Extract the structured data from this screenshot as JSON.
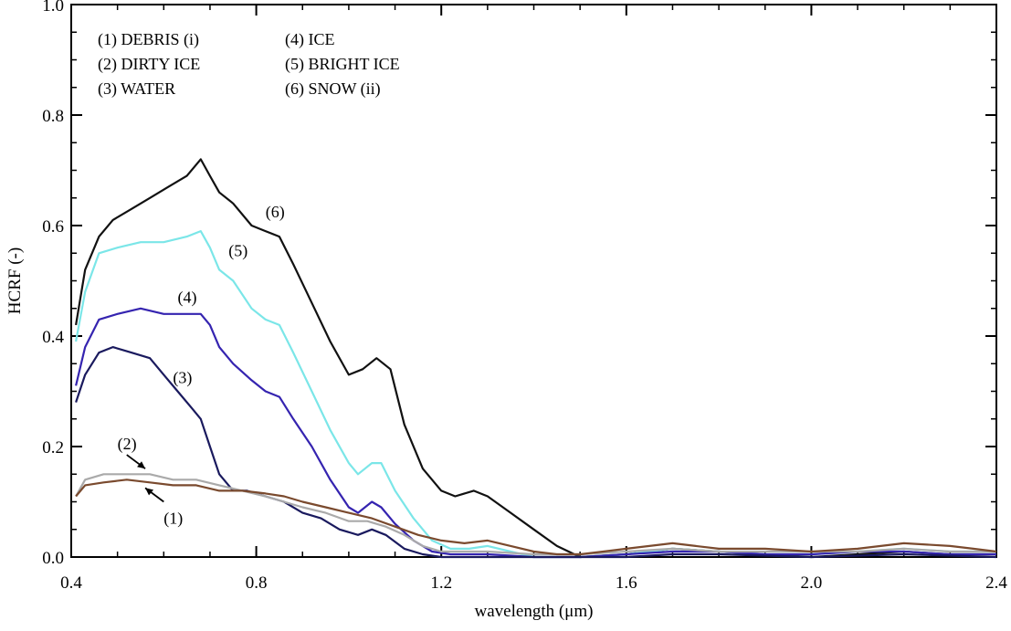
{
  "chart_data": {
    "type": "line",
    "xlabel": "wavelength (μm)",
    "ylabel": "HCRF (-)",
    "xlim": [
      0.4,
      2.4
    ],
    "ylim": [
      0.0,
      1.0
    ],
    "x_ticks": [
      "0.4",
      "0.8",
      "1.2",
      "1.6",
      "2.0",
      "2.4"
    ],
    "y_ticks": [
      "0.0",
      "0.2",
      "0.4",
      "0.6",
      "0.8",
      "1.0"
    ],
    "grid": false,
    "legend_entries": [
      "(1) DEBRIS (i)",
      "(2) DIRTY ICE",
      "(3) WATER",
      "(4) ICE",
      "(5) BRIGHT ICE",
      "(6) SNOW (ii)"
    ],
    "legend_placement": "top-left",
    "series": [
      {
        "label": "(6)",
        "color": "#111111",
        "points": [
          [
            0.41,
            0.42
          ],
          [
            0.43,
            0.52
          ],
          [
            0.46,
            0.58
          ],
          [
            0.49,
            0.61
          ],
          [
            0.53,
            0.63
          ],
          [
            0.57,
            0.65
          ],
          [
            0.61,
            0.67
          ],
          [
            0.65,
            0.69
          ],
          [
            0.68,
            0.72
          ],
          [
            0.7,
            0.69
          ],
          [
            0.72,
            0.66
          ],
          [
            0.75,
            0.64
          ],
          [
            0.79,
            0.6
          ],
          [
            0.82,
            0.59
          ],
          [
            0.85,
            0.58
          ],
          [
            0.88,
            0.53
          ],
          [
            0.92,
            0.46
          ],
          [
            0.96,
            0.39
          ],
          [
            1.0,
            0.33
          ],
          [
            1.03,
            0.34
          ],
          [
            1.06,
            0.36
          ],
          [
            1.09,
            0.34
          ],
          [
            1.12,
            0.24
          ],
          [
            1.16,
            0.16
          ],
          [
            1.2,
            0.12
          ],
          [
            1.23,
            0.11
          ],
          [
            1.27,
            0.12
          ],
          [
            1.3,
            0.11
          ],
          [
            1.35,
            0.08
          ],
          [
            1.4,
            0.05
          ],
          [
            1.45,
            0.02
          ],
          [
            1.5,
            0.0
          ],
          [
            1.6,
            0.005
          ],
          [
            1.7,
            0.015
          ],
          [
            1.8,
            0.01
          ],
          [
            1.9,
            0.005
          ],
          [
            2.0,
            0.0
          ],
          [
            2.1,
            0.005
          ],
          [
            2.2,
            0.01
          ],
          [
            2.3,
            0.005
          ],
          [
            2.4,
            0.005
          ]
        ]
      },
      {
        "label": "(5)",
        "color": "#7be6e8",
        "points": [
          [
            0.41,
            0.39
          ],
          [
            0.43,
            0.48
          ],
          [
            0.46,
            0.55
          ],
          [
            0.5,
            0.56
          ],
          [
            0.55,
            0.57
          ],
          [
            0.6,
            0.57
          ],
          [
            0.65,
            0.58
          ],
          [
            0.68,
            0.59
          ],
          [
            0.7,
            0.56
          ],
          [
            0.72,
            0.52
          ],
          [
            0.75,
            0.5
          ],
          [
            0.79,
            0.45
          ],
          [
            0.82,
            0.43
          ],
          [
            0.85,
            0.42
          ],
          [
            0.88,
            0.37
          ],
          [
            0.92,
            0.3
          ],
          [
            0.96,
            0.23
          ],
          [
            1.0,
            0.17
          ],
          [
            1.02,
            0.15
          ],
          [
            1.05,
            0.17
          ],
          [
            1.07,
            0.17
          ],
          [
            1.1,
            0.12
          ],
          [
            1.14,
            0.07
          ],
          [
            1.18,
            0.03
          ],
          [
            1.22,
            0.015
          ],
          [
            1.26,
            0.015
          ],
          [
            1.3,
            0.02
          ],
          [
            1.35,
            0.01
          ],
          [
            1.4,
            0.0
          ],
          [
            1.5,
            0.0
          ],
          [
            1.6,
            0.005
          ],
          [
            1.7,
            0.015
          ],
          [
            1.8,
            0.01
          ],
          [
            1.9,
            0.005
          ],
          [
            2.0,
            0.005
          ],
          [
            2.1,
            0.01
          ],
          [
            2.2,
            0.015
          ],
          [
            2.3,
            0.01
          ],
          [
            2.4,
            0.01
          ]
        ]
      },
      {
        "label": "(4)",
        "color": "#3524b0",
        "points": [
          [
            0.41,
            0.31
          ],
          [
            0.43,
            0.38
          ],
          [
            0.46,
            0.43
          ],
          [
            0.5,
            0.44
          ],
          [
            0.55,
            0.45
          ],
          [
            0.6,
            0.44
          ],
          [
            0.65,
            0.44
          ],
          [
            0.68,
            0.44
          ],
          [
            0.7,
            0.42
          ],
          [
            0.72,
            0.38
          ],
          [
            0.75,
            0.35
          ],
          [
            0.79,
            0.32
          ],
          [
            0.82,
            0.3
          ],
          [
            0.85,
            0.29
          ],
          [
            0.88,
            0.25
          ],
          [
            0.92,
            0.2
          ],
          [
            0.96,
            0.14
          ],
          [
            1.0,
            0.09
          ],
          [
            1.02,
            0.08
          ],
          [
            1.05,
            0.1
          ],
          [
            1.07,
            0.09
          ],
          [
            1.1,
            0.06
          ],
          [
            1.14,
            0.03
          ],
          [
            1.18,
            0.01
          ],
          [
            1.22,
            0.005
          ],
          [
            1.3,
            0.005
          ],
          [
            1.4,
            0.0
          ],
          [
            1.5,
            0.0
          ],
          [
            1.6,
            0.005
          ],
          [
            1.7,
            0.01
          ],
          [
            1.8,
            0.01
          ],
          [
            1.9,
            0.005
          ],
          [
            2.0,
            0.005
          ],
          [
            2.1,
            0.01
          ],
          [
            2.2,
            0.01
          ],
          [
            2.3,
            0.005
          ],
          [
            2.4,
            0.005
          ]
        ]
      },
      {
        "label": "(3)",
        "color": "#1a1a5e",
        "points": [
          [
            0.41,
            0.28
          ],
          [
            0.43,
            0.33
          ],
          [
            0.46,
            0.37
          ],
          [
            0.49,
            0.38
          ],
          [
            0.53,
            0.37
          ],
          [
            0.57,
            0.36
          ],
          [
            0.6,
            0.33
          ],
          [
            0.63,
            0.3
          ],
          [
            0.66,
            0.27
          ],
          [
            0.68,
            0.25
          ],
          [
            0.7,
            0.2
          ],
          [
            0.72,
            0.15
          ],
          [
            0.75,
            0.12
          ],
          [
            0.78,
            0.12
          ],
          [
            0.82,
            0.11
          ],
          [
            0.86,
            0.1
          ],
          [
            0.9,
            0.08
          ],
          [
            0.94,
            0.07
          ],
          [
            0.98,
            0.05
          ],
          [
            1.02,
            0.04
          ],
          [
            1.05,
            0.05
          ],
          [
            1.08,
            0.04
          ],
          [
            1.12,
            0.015
          ],
          [
            1.16,
            0.005
          ],
          [
            1.2,
            0.0
          ],
          [
            1.3,
            0.0
          ],
          [
            1.4,
            0.0
          ],
          [
            1.5,
            0.0
          ],
          [
            1.6,
            0.0
          ],
          [
            1.7,
            0.005
          ],
          [
            1.8,
            0.005
          ],
          [
            2.0,
            0.0
          ],
          [
            2.2,
            0.005
          ],
          [
            2.4,
            0.0
          ]
        ]
      },
      {
        "label": "(2)",
        "color": "#aaaaaa",
        "points": [
          [
            0.41,
            0.11
          ],
          [
            0.43,
            0.14
          ],
          [
            0.47,
            0.15
          ],
          [
            0.52,
            0.15
          ],
          [
            0.57,
            0.15
          ],
          [
            0.62,
            0.14
          ],
          [
            0.67,
            0.14
          ],
          [
            0.72,
            0.13
          ],
          [
            0.77,
            0.12
          ],
          [
            0.82,
            0.11
          ],
          [
            0.86,
            0.1
          ],
          [
            0.9,
            0.09
          ],
          [
            0.95,
            0.08
          ],
          [
            1.0,
            0.065
          ],
          [
            1.04,
            0.065
          ],
          [
            1.08,
            0.055
          ],
          [
            1.12,
            0.04
          ],
          [
            1.16,
            0.02
          ],
          [
            1.2,
            0.01
          ],
          [
            1.3,
            0.01
          ],
          [
            1.4,
            0.005
          ],
          [
            1.5,
            0.005
          ],
          [
            1.6,
            0.01
          ],
          [
            1.7,
            0.015
          ],
          [
            1.8,
            0.01
          ],
          [
            1.9,
            0.01
          ],
          [
            2.0,
            0.01
          ],
          [
            2.1,
            0.01
          ],
          [
            2.2,
            0.015
          ],
          [
            2.3,
            0.01
          ],
          [
            2.4,
            0.01
          ]
        ]
      },
      {
        "label": "(1)",
        "color": "#7a4a2e",
        "points": [
          [
            0.41,
            0.11
          ],
          [
            0.43,
            0.13
          ],
          [
            0.47,
            0.135
          ],
          [
            0.52,
            0.14
          ],
          [
            0.57,
            0.135
          ],
          [
            0.62,
            0.13
          ],
          [
            0.67,
            0.13
          ],
          [
            0.72,
            0.12
          ],
          [
            0.77,
            0.12
          ],
          [
            0.82,
            0.115
          ],
          [
            0.86,
            0.11
          ],
          [
            0.9,
            0.1
          ],
          [
            0.95,
            0.09
          ],
          [
            1.0,
            0.08
          ],
          [
            1.05,
            0.07
          ],
          [
            1.1,
            0.055
          ],
          [
            1.15,
            0.04
          ],
          [
            1.2,
            0.03
          ],
          [
            1.25,
            0.025
          ],
          [
            1.3,
            0.03
          ],
          [
            1.35,
            0.02
          ],
          [
            1.4,
            0.01
          ],
          [
            1.45,
            0.005
          ],
          [
            1.5,
            0.005
          ],
          [
            1.55,
            0.01
          ],
          [
            1.6,
            0.015
          ],
          [
            1.65,
            0.02
          ],
          [
            1.7,
            0.025
          ],
          [
            1.75,
            0.02
          ],
          [
            1.8,
            0.015
          ],
          [
            1.85,
            0.015
          ],
          [
            1.9,
            0.015
          ],
          [
            2.0,
            0.01
          ],
          [
            2.1,
            0.015
          ],
          [
            2.2,
            0.025
          ],
          [
            2.3,
            0.02
          ],
          [
            2.35,
            0.015
          ],
          [
            2.4,
            0.01
          ]
        ]
      }
    ],
    "annotations": [
      {
        "text": "(6)",
        "x": 0.82,
        "y": 0.615
      },
      {
        "text": "(5)",
        "x": 0.74,
        "y": 0.545
      },
      {
        "text": "(4)",
        "x": 0.63,
        "y": 0.46
      },
      {
        "text": "(3)",
        "x": 0.62,
        "y": 0.315
      },
      {
        "text": "(2)",
        "x": 0.5,
        "y": 0.195
      },
      {
        "text": "(1)",
        "x": 0.6,
        "y": 0.06
      }
    ]
  }
}
